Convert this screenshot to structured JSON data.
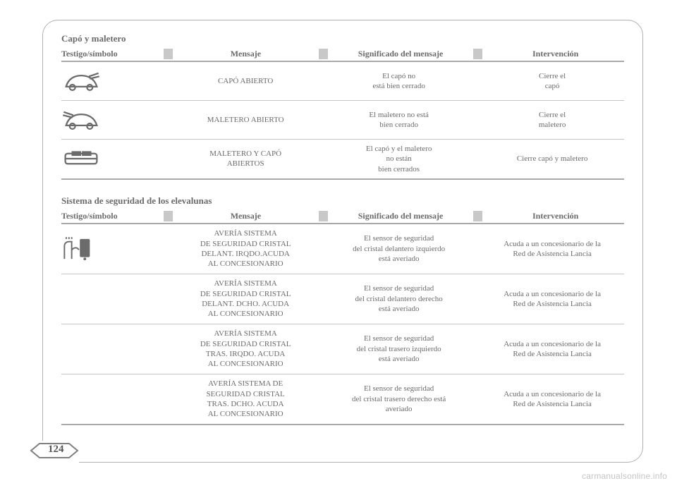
{
  "page_number": "124",
  "watermark": "carmanualsonline.info",
  "colors": {
    "text": "#6b6b6b",
    "divider_dark": "#a9a9a9",
    "divider_light": "#c4c4c4",
    "stripe": "#c8c8c8",
    "frame": "#b0b0b0",
    "bg": "#ffffff",
    "watermark": "#c5c5c5"
  },
  "sections": [
    {
      "title": "Capó y maletero",
      "headers": [
        "Testigo/símbolo",
        "Mensaje",
        "Significado del mensaje",
        "Intervención"
      ],
      "rows": [
        {
          "icon": "car-hood-open",
          "message": "CAPÓ ABIERTO",
          "meaning": "El capó no\nestá bien cerrado",
          "action": "Cierre el\ncapó"
        },
        {
          "icon": "car-trunk-open",
          "message": "MALETERO ABIERTO",
          "meaning": "El maletero no está\nbien cerrado",
          "action": "Cierre el\nmaletero"
        },
        {
          "icon": "car-both-open",
          "message": "MALETERO Y CAPÓ\nABIERTOS",
          "meaning": "El capó y el maletero\nno están\nbien cerrados",
          "action": "Cierre capó y maletero"
        }
      ]
    },
    {
      "title": "Sistema de seguridad de los elevalunas",
      "headers": [
        "Testigo/símbolo",
        "Mensaje",
        "Significado del mensaje",
        "Intervención"
      ],
      "rows": [
        {
          "icon": "window-hand",
          "message": "AVERÍA SISTEMA\nDE SEGURIDAD CRISTAL\nDELANT. IRQDO.ACUDA\nAL CONCESIONARIO",
          "meaning": "El sensor de seguridad\ndel cristal delantero izquierdo\nestá averiado",
          "action": "Acuda a un concesionario de la\nRed de Asistencia Lancia"
        },
        {
          "icon": "",
          "message": "AVERÍA SISTEMA\nDE SEGURIDAD CRISTAL\nDELANT. DCHO. ACUDA\nAL CONCESIONARIO",
          "meaning": "El sensor de seguridad\ndel cristal delantero derecho\nestá averiado",
          "action": "Acuda a un concesionario de la\nRed de Asistencia Lancia"
        },
        {
          "icon": "",
          "message": "AVERÍA SISTEMA\nDE SEGURIDAD CRISTAL\nTRAS. IRQDO. ACUDA\nAL CONCESIONARIO",
          "meaning": "El sensor de seguridad\ndel cristal trasero izquierdo\nestá averiado",
          "action": "Acuda a un concesionario de la\nRed de Asistencia Lancia"
        },
        {
          "icon": "",
          "message": "AVERÍA SISTEMA DE\nSEGURIDAD CRISTAL\nTRAS. DCHO. ACUDA\nAL CONCESIONARIO",
          "meaning": "El sensor de seguridad\ndel cristal trasero derecho está\naveriado",
          "action": "Acuda a un concesionario de la\nRed de Asistencia Lancia"
        }
      ]
    }
  ]
}
